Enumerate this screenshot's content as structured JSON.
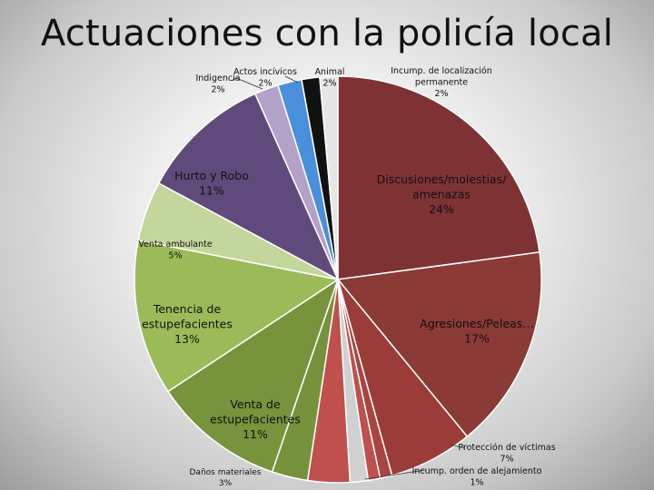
{
  "title": "Actuaciones con la policía local",
  "chart_data": {
    "type": "pie",
    "title": "Actuaciones con la policía local",
    "slices": [
      {
        "label": "Discusiones/molestias/ amenazas",
        "value": 24,
        "pct": "24%",
        "color": "#7f3234"
      },
      {
        "label": "Agresiones/Peleas…",
        "value": 17,
        "pct": "17%",
        "color": "#8b3a36"
      },
      {
        "label": "Protección de víctimas",
        "value": 7,
        "pct": "7%",
        "color": "#9b3c39"
      },
      {
        "label": "Incump. orden de alejamiento",
        "value": 1,
        "pct": "1%",
        "color": "#a84541"
      },
      {
        "label": "",
        "value": 1,
        "pct": "",
        "color": "#c0504d"
      },
      {
        "label": "",
        "value": 1.5,
        "pct": "",
        "color": "#d0d0d0"
      },
      {
        "label": "",
        "value": 3.5,
        "pct": "",
        "color": "#c0504d"
      },
      {
        "label": "Daños materiales",
        "value": 3,
        "pct": "3%",
        "color": "#76923c"
      },
      {
        "label": "Venta de estupefacientes",
        "value": 11,
        "pct": "11%",
        "color": "#77933c"
      },
      {
        "label": "Tenencia de estupefacientes",
        "value": 13,
        "pct": "13%",
        "color": "#9bbb59"
      },
      {
        "label": "Venta ambulante",
        "value": 5,
        "pct": "5%",
        "color": "#c3d69b"
      },
      {
        "label": "Hurto y Robo",
        "value": 11,
        "pct": "11%",
        "color": "#604a7b"
      },
      {
        "label": "Indigencia",
        "value": 2,
        "pct": "2%",
        "color": "#b3a2c7"
      },
      {
        "label": "Actos incívicos",
        "value": 2,
        "pct": "2%",
        "color": "#4a8fdc"
      },
      {
        "label": "Animal",
        "value": 1.5,
        "pct": "2%",
        "color": "#111111"
      },
      {
        "label": "Incump. de localización permanente",
        "value": 1.5,
        "pct": "2%",
        "color": "#e6e6e6"
      }
    ]
  }
}
